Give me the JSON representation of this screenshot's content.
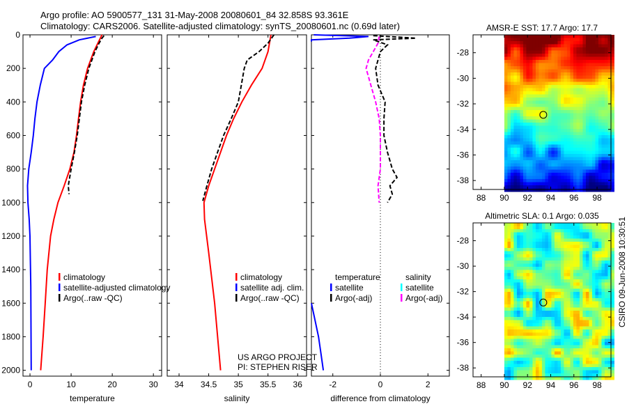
{
  "header": {
    "line1": "Argo profile: AO 5900577_131 31-May-2008 20080601_84 32.858S 93.361E",
    "line2": "Climatology: CARS2006. Satellite-adjusted climatology: synTS_20080601.nc (0.69d later)"
  },
  "stamp": "CSIRO 09-Jun-2008 10:30:51",
  "colors": {
    "climatology": "#ff0000",
    "satellite": "#0000ff",
    "argo": "#000000",
    "sal_sat": "#00ffff",
    "sal_argo": "#ff00ff"
  },
  "chart_data": [
    {
      "type": "line",
      "xlabel": "temperature",
      "ylabel": "",
      "xlim": [
        -1.7,
        32
      ],
      "ylim": [
        2035,
        0
      ],
      "xticks": [
        0,
        10,
        20,
        30
      ],
      "yticks": [
        0,
        200,
        400,
        600,
        800,
        1000,
        1200,
        1400,
        1600,
        1800,
        2000
      ],
      "legend": [
        "climatology",
        "satellite-adjusted climatology",
        "Argo(..raw -QC)"
      ],
      "series": [
        {
          "name": "climatology",
          "color": "#ff0000",
          "depth": [
            0,
            50,
            100,
            200,
            300,
            400,
            500,
            600,
            700,
            800,
            900,
            1000,
            1100,
            1200,
            1400,
            1600,
            1800,
            2000
          ],
          "values": [
            17.5,
            16.5,
            15.5,
            14,
            13,
            12.3,
            11.8,
            11.3,
            10.7,
            9.7,
            8.3,
            6.8,
            5.8,
            5,
            4.2,
            3.7,
            3.2,
            2.6
          ]
        },
        {
          "name": "satellite-adjusted climatology",
          "color": "#0000ff",
          "depth": [
            10,
            30,
            60,
            100,
            150,
            200,
            300,
            400,
            500,
            600,
            700,
            800,
            900,
            1000,
            1100,
            1200,
            1500,
            2000
          ],
          "values": [
            16,
            12,
            9,
            7,
            5.5,
            3.5,
            2.5,
            1.7,
            1.2,
            0.8,
            0.3,
            -0.3,
            -0.6,
            -0.5,
            -0.2,
            0,
            0.2,
            0.3
          ]
        },
        {
          "name": "Argo(..raw -QC)",
          "color": "#000000",
          "dash": true,
          "depth": [
            5,
            20,
            50,
            100,
            200,
            300,
            400,
            500,
            600,
            700,
            800,
            900,
            950
          ],
          "values": [
            18,
            17.5,
            16.8,
            15.8,
            14.3,
            13.3,
            12.5,
            12,
            11.5,
            10.8,
            10,
            9.3,
            9.5
          ]
        }
      ]
    },
    {
      "type": "line",
      "xlabel": "salinity",
      "xlim": [
        33.8,
        36.15
      ],
      "ylim": [
        2035,
        0
      ],
      "xticks": [
        34,
        34.5,
        35,
        35.5,
        36
      ],
      "legend": [
        "climatology",
        "satellite adj. clim.",
        "Argo(..raw -QC)"
      ],
      "annotations": [
        "US ARGO PROJECT",
        "PI: STEPHEN RISER"
      ],
      "series": [
        {
          "name": "climatology",
          "color": "#ff0000",
          "depth": [
            0,
            100,
            200,
            300,
            400,
            500,
            600,
            700,
            800,
            900,
            1000,
            1100,
            1300,
            1600,
            2000
          ],
          "values": [
            35.55,
            35.5,
            35.4,
            35.22,
            35.06,
            34.92,
            34.8,
            34.7,
            34.6,
            34.5,
            34.42,
            34.43,
            34.5,
            34.6,
            34.7
          ]
        },
        {
          "name": "Argo(..raw -QC)",
          "color": "#000000",
          "dash": true,
          "depth": [
            0,
            50,
            100,
            150,
            200,
            300,
            400,
            500,
            600,
            700,
            800,
            900,
            990
          ],
          "values": [
            35.6,
            35.5,
            35.35,
            35.15,
            35.1,
            35.05,
            35.0,
            34.88,
            34.75,
            34.65,
            34.55,
            34.47,
            34.4
          ]
        }
      ]
    },
    {
      "type": "line",
      "xlabel": "difference from climatology",
      "xlim": [
        -2.9,
        2.9
      ],
      "ylim": [
        2035,
        0
      ],
      "xticks": [
        -2,
        0,
        2
      ],
      "legend": {
        "temperature": "temperature",
        "salinity": "salinity",
        "t_sat": "satellite",
        "t_argo": "Argo(-adj)",
        "s_sat": "satellite",
        "s_argo": "Argo(-adj)"
      },
      "series": [
        {
          "name": "temperature satellite",
          "color": "#0000ff",
          "depth": [
            0,
            10,
            20,
            30,
            40
          ],
          "values": [
            -2.8,
            -0.5,
            -1.3,
            -2.9,
            -2.9
          ]
        },
        {
          "name": "temperature satellite deep",
          "color": "#0000ff",
          "depth": [
            1600,
            1700,
            1800,
            1900,
            2000
          ],
          "values": [
            -2.9,
            -2.75,
            -2.6,
            -2.5,
            -2.4
          ]
        },
        {
          "name": "temperature Argo(-adj)",
          "color": "#000000",
          "dash": true,
          "depth": [
            5,
            20,
            30,
            60,
            100,
            200,
            300,
            400,
            500,
            600,
            700,
            800,
            850,
            900,
            950,
            1000
          ],
          "values": [
            -0.3,
            1.5,
            -0.3,
            0.3,
            0,
            -0.2,
            -0.1,
            0.2,
            0.15,
            0.15,
            0.3,
            0.5,
            0.7,
            0.4,
            0.5,
            0.3
          ]
        },
        {
          "name": "salinity Argo(-adj)",
          "color": "#ff00ff",
          "dash": true,
          "depth": [
            10,
            50,
            100,
            150,
            200,
            300,
            400,
            500,
            600,
            800,
            900,
            1000
          ],
          "values": [
            -0.05,
            -0.1,
            -0.3,
            -0.5,
            -0.6,
            -0.4,
            -0.2,
            -0.05,
            0,
            0,
            -0.1,
            -0.05
          ]
        }
      ]
    },
    {
      "type": "heatmap",
      "title": "AMSR-E SST: 17.7 Argo: 17.7",
      "xlim": [
        87.3,
        99.2
      ],
      "ylim": [
        -38.7,
        -26.6
      ],
      "xticks": [
        88,
        90,
        92,
        94,
        96,
        98
      ],
      "yticks": [
        -28,
        -30,
        -32,
        -34,
        -36,
        -38
      ],
      "marker": [
        93.361,
        -32.858
      ]
    },
    {
      "type": "heatmap",
      "title": "Altimetric SLA: 0.1 Argo: 0.035",
      "xlim": [
        87.3,
        99.2
      ],
      "ylim": [
        -38.7,
        -26.6
      ],
      "xticks": [
        88,
        90,
        92,
        94,
        96,
        98
      ],
      "yticks": [
        -28,
        -30,
        -32,
        -34,
        -36,
        -38
      ],
      "marker": [
        93.361,
        -32.858
      ]
    }
  ]
}
